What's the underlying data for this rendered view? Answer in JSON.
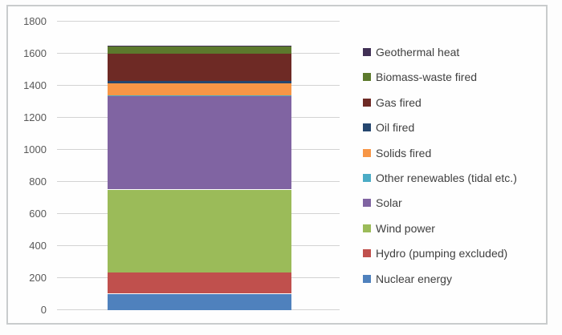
{
  "chart_data": {
    "type": "bar",
    "stacked": true,
    "title": "",
    "xlabel": "",
    "ylabel": "",
    "categories": [
      ""
    ],
    "series": [
      {
        "name": "Nuclear energy",
        "color": "#4f81bd",
        "values": [
          100
        ]
      },
      {
        "name": "Hydro (pumping excluded)",
        "color": "#c0504d",
        "values": [
          132
        ]
      },
      {
        "name": "Wind power",
        "color": "#9bbb59",
        "values": [
          518
        ]
      },
      {
        "name": "Solar",
        "color": "#8064a2",
        "values": [
          586
        ]
      },
      {
        "name": "Other renewables (tidal etc.)",
        "color": "#4bacc6",
        "values": [
          2
        ]
      },
      {
        "name": "Solids fired",
        "color": "#f79646",
        "values": [
          74
        ]
      },
      {
        "name": "Oil fired",
        "color": "#25476f",
        "values": [
          14
        ]
      },
      {
        "name": "Gas fired",
        "color": "#6e2a25",
        "values": [
          170
        ]
      },
      {
        "name": "Biomass-waste fired",
        "color": "#5c7a2d",
        "values": [
          46
        ]
      },
      {
        "name": "Geothermal heat",
        "color": "#413055",
        "values": [
          8
        ]
      }
    ],
    "ylim": [
      0,
      1800
    ],
    "ytick_step": 200,
    "ytick_labels": [
      "0",
      "200",
      "400",
      "600",
      "800",
      "1000",
      "1200",
      "1400",
      "1600",
      "1800"
    ],
    "grid": true,
    "legend_position": "right",
    "legend_order_top_to_bottom": [
      "Geothermal heat",
      "Biomass-waste fired",
      "Gas fired",
      "Oil fired",
      "Solids fired",
      "Other renewables (tidal etc.)",
      "Solar",
      "Wind power",
      "Hydro (pumping excluded)",
      "Nuclear energy"
    ]
  },
  "colors": {
    "background": "#fdfdfd",
    "frame_border": "#c9cccd",
    "gridline": "#d3d3d3",
    "axis_label_text": "#595959",
    "legend_text": "#404040"
  }
}
